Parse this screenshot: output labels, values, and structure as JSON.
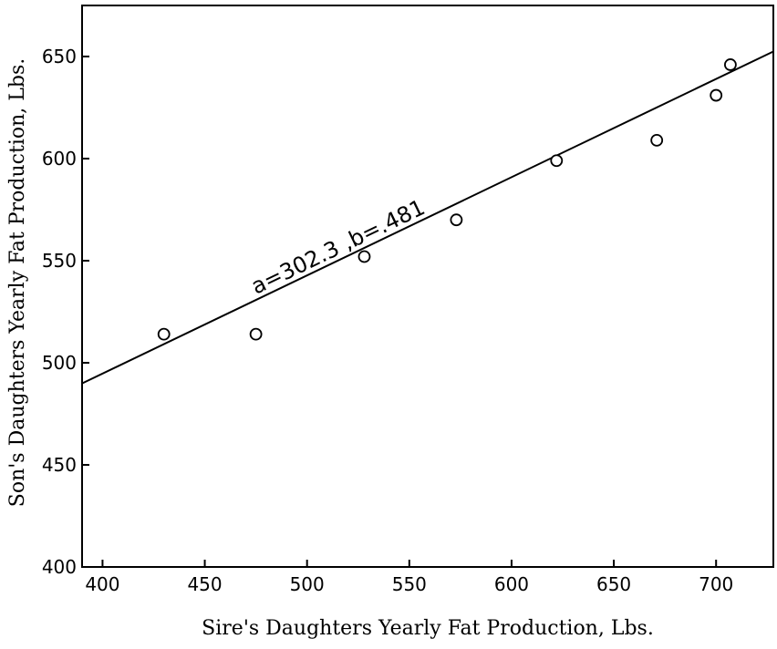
{
  "chart_data": {
    "type": "scatter",
    "xlabel": "Sire's  Daughters Yearly Fat Production, Lbs.",
    "ylabel": "Son's Daughters Yearly Fat Production, Lbs.",
    "xlim": [
      390,
      728
    ],
    "ylim": [
      400,
      675
    ],
    "x_ticks": [
      400,
      450,
      500,
      550,
      600,
      650,
      700
    ],
    "y_ticks": [
      400,
      450,
      500,
      550,
      600,
      650
    ],
    "x_tick_labels": [
      "400",
      "450",
      "500",
      "550",
      "600",
      "650",
      "700"
    ],
    "y_tick_labels": [
      "400",
      "450",
      "500",
      "550",
      "600",
      "650"
    ],
    "grid": false,
    "points": [
      {
        "x": 430,
        "y": 514
      },
      {
        "x": 475,
        "y": 514
      },
      {
        "x": 528,
        "y": 552
      },
      {
        "x": 573,
        "y": 570
      },
      {
        "x": 622,
        "y": 599
      },
      {
        "x": 671,
        "y": 609
      },
      {
        "x": 700,
        "y": 631
      },
      {
        "x": 707,
        "y": 646
      }
    ],
    "regression_line": {
      "a": 302.3,
      "b": 0.481,
      "x_start": 390,
      "x_end": 728
    },
    "annotation": "a=302.3 ,b=.481"
  }
}
